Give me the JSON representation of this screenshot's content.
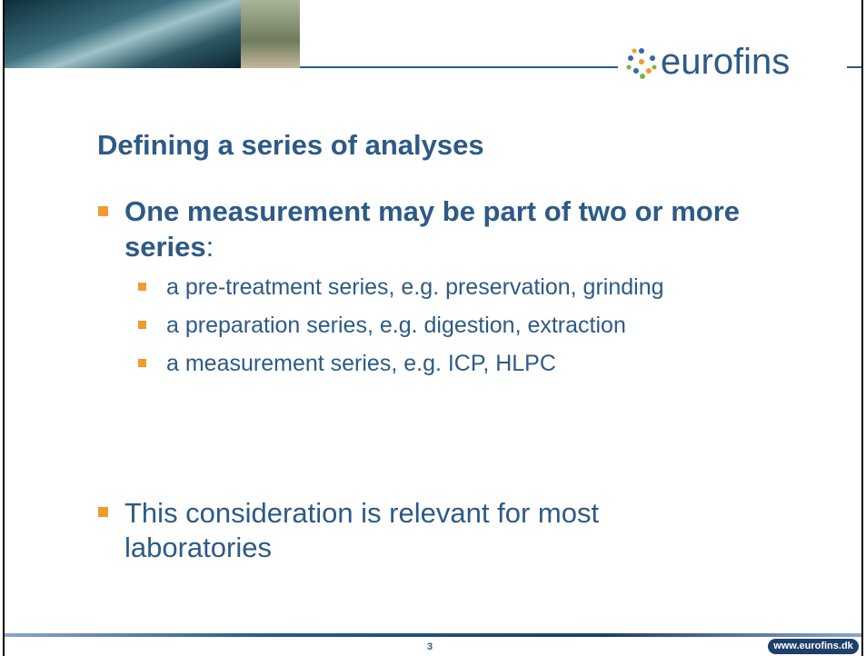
{
  "header": {
    "logo": "eurofins"
  },
  "title": "Defining a series of analyses",
  "bullets": [
    {
      "text": [
        "One measurement may be part of two or more",
        "series"
      ],
      "suffix": ":",
      "subitems": [
        "a pre-treatment series, e.g. preservation, grinding",
        "a preparation series, e.g. digestion, extraction",
        "a measurement series, e.g. ICP, HLPC"
      ]
    },
    {
      "text": [
        "This consideration is relevant for most",
        "laboratories"
      ]
    }
  ],
  "footer": {
    "page": "3",
    "url": "www.eurofins.dk"
  }
}
